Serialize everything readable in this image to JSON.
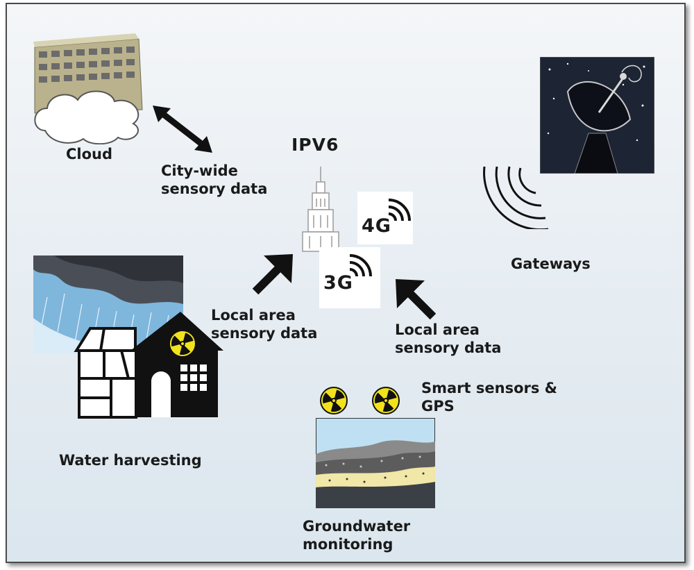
{
  "labels": {
    "cloud": "Cloud",
    "city_wide_1": "City-wide",
    "city_wide_2": "sensory data",
    "ipv6": "IPV6",
    "net_4g": "4G",
    "net_3g": "3G",
    "gateways": "Gateways",
    "local_left_1": "Local area",
    "local_left_2": "sensory data",
    "local_right_1": "Local area",
    "local_right_2": "sensory data",
    "smart_1": "Smart sensors &",
    "smart_2": "GPS",
    "water_harvesting": "Water harvesting",
    "groundwater_1": "Groundwater",
    "groundwater_2": "monitoring"
  },
  "colors": {
    "arrow": "#111111",
    "radiation_yellow": "#f2e21c",
    "sky_night": "#1d2433",
    "water_blue": "#8fc3e6"
  }
}
